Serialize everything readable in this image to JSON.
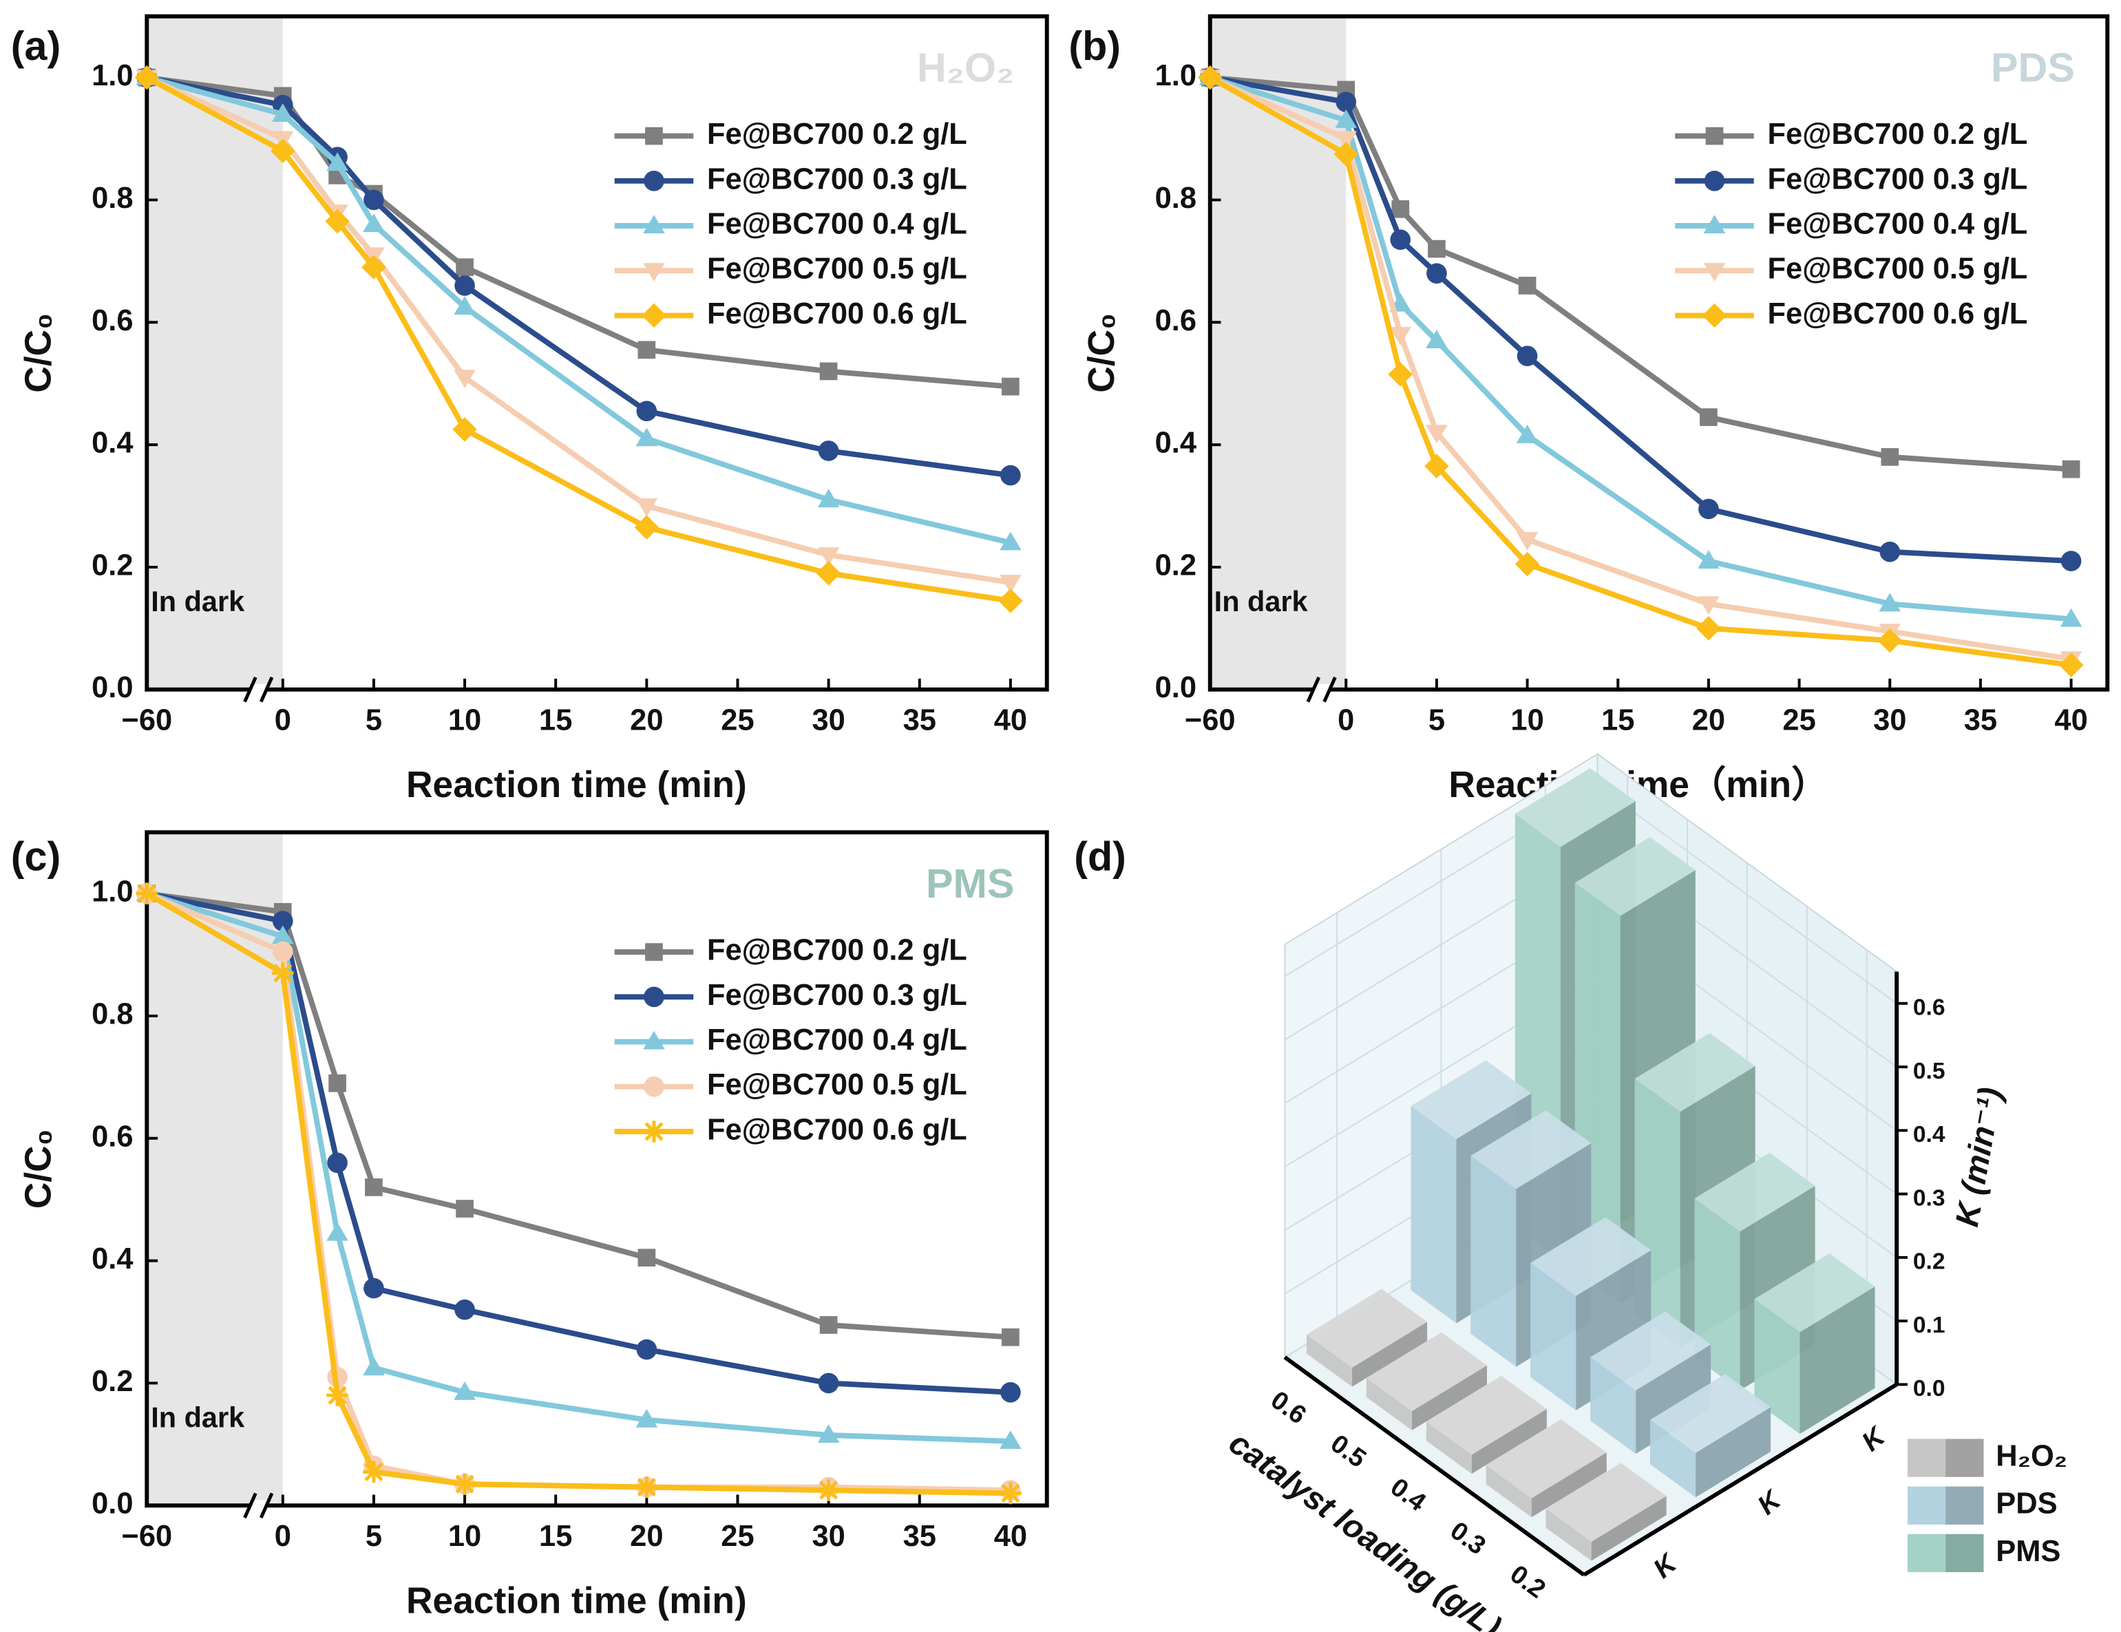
{
  "chart_data": [
    {
      "type": "line",
      "label": "(a)",
      "corner_label": "H₂O₂",
      "corner_color": "#dcdcdc",
      "annotation": "In dark",
      "xlabel": "Reaction time (min)",
      "ylabel": "C/C₀",
      "x": [
        -60,
        0,
        3,
        5,
        10,
        20,
        30,
        40
      ],
      "xlim": [
        -60,
        42
      ],
      "xticks": [
        {
          "value": -60,
          "label": "−60"
        },
        0,
        5,
        10,
        15,
        20,
        25,
        30,
        35,
        40
      ],
      "ylim": [
        0,
        1.1
      ],
      "yticks": [
        {
          "value": 0,
          "label": "0.0"
        },
        0.2,
        0.4,
        0.6,
        0.8,
        {
          "value": 1,
          "label": "1.0"
        }
      ],
      "legend": "upper right",
      "series": [
        {
          "name": "Fe@BC700 0.2 g/L",
          "color": "#7f7f7f",
          "marker": "square",
          "values": [
            1.0,
            0.97,
            0.84,
            0.81,
            0.69,
            0.555,
            0.52,
            0.495
          ]
        },
        {
          "name": "Fe@BC700 0.3 g/L",
          "color": "#2b4c8c",
          "marker": "circle",
          "values": [
            1.0,
            0.955,
            0.87,
            0.8,
            0.66,
            0.455,
            0.39,
            0.35
          ]
        },
        {
          "name": "Fe@BC700 0.4 g/L",
          "color": "#82c8dc",
          "marker": "triangle",
          "values": [
            1.0,
            0.94,
            0.86,
            0.76,
            0.625,
            0.41,
            0.31,
            0.24
          ]
        },
        {
          "name": "Fe@BC700 0.5 g/L",
          "color": "#f6cdb0",
          "marker": "down-triangle",
          "values": [
            1.0,
            0.9,
            0.78,
            0.71,
            0.51,
            0.3,
            0.22,
            0.175
          ]
        },
        {
          "name": "Fe@BC700 0.6 g/L",
          "color": "#fbbd18",
          "marker": "diamond",
          "values": [
            1.0,
            0.88,
            0.765,
            0.69,
            0.425,
            0.265,
            0.19,
            0.145
          ]
        }
      ]
    },
    {
      "type": "line",
      "label": "(b)",
      "corner_label": "PDS",
      "corner_color": "#c6d6dc",
      "annotation": "In dark",
      "xlabel": "Reaction time（min）",
      "ylabel": "C/C₀",
      "x": [
        -60,
        0,
        3,
        5,
        10,
        20,
        30,
        40
      ],
      "xlim": [
        -60,
        42
      ],
      "xticks": [
        {
          "value": -60,
          "label": "−60"
        },
        0,
        5,
        10,
        15,
        20,
        25,
        30,
        35,
        40
      ],
      "ylim": [
        0,
        1.1
      ],
      "yticks": [
        {
          "value": 0,
          "label": "0.0"
        },
        0.2,
        0.4,
        0.6,
        0.8,
        {
          "value": 1,
          "label": "1.0"
        }
      ],
      "legend": "upper right",
      "series": [
        {
          "name": "Fe@BC700 0.2 g/L",
          "color": "#7f7f7f",
          "marker": "square",
          "values": [
            1.0,
            0.98,
            0.785,
            0.72,
            0.66,
            0.445,
            0.38,
            0.36
          ]
        },
        {
          "name": "Fe@BC700 0.3 g/L",
          "color": "#2b4c8c",
          "marker": "circle",
          "values": [
            1.0,
            0.96,
            0.735,
            0.68,
            0.545,
            0.295,
            0.225,
            0.21
          ]
        },
        {
          "name": "Fe@BC700 0.4 g/L",
          "color": "#82c8dc",
          "marker": "triangle",
          "values": [
            1.0,
            0.93,
            0.63,
            0.57,
            0.415,
            0.21,
            0.14,
            0.115
          ]
        },
        {
          "name": "Fe@BC700 0.5 g/L",
          "color": "#f6cdb0",
          "marker": "down-triangle",
          "values": [
            1.0,
            0.9,
            0.58,
            0.42,
            0.245,
            0.14,
            0.095,
            0.05
          ]
        },
        {
          "name": "Fe@BC700 0.6 g/L",
          "color": "#fbbd18",
          "marker": "diamond",
          "values": [
            1.0,
            0.875,
            0.515,
            0.365,
            0.205,
            0.1,
            0.08,
            0.04
          ]
        }
      ]
    },
    {
      "type": "line",
      "label": "(c)",
      "corner_label": "PMS",
      "corner_color": "#9cc4bb",
      "annotation": "In dark",
      "xlabel": "Reaction time (min)",
      "ylabel": "C/C₀",
      "x": [
        -60,
        0,
        3,
        5,
        10,
        20,
        30,
        40
      ],
      "xlim": [
        -60,
        42
      ],
      "xticks": [
        {
          "value": -60,
          "label": "−60"
        },
        0,
        5,
        10,
        15,
        20,
        25,
        30,
        35,
        40
      ],
      "ylim": [
        0,
        1.1
      ],
      "yticks": [
        {
          "value": 0,
          "label": "0.0"
        },
        0.2,
        0.4,
        0.6,
        0.8,
        {
          "value": 1,
          "label": "1.0"
        }
      ],
      "legend": "upper right",
      "series": [
        {
          "name": "Fe@BC700 0.2 g/L",
          "color": "#7f7f7f",
          "marker": "square",
          "values": [
            1.0,
            0.97,
            0.69,
            0.52,
            0.485,
            0.405,
            0.295,
            0.275
          ]
        },
        {
          "name": "Fe@BC700 0.3 g/L",
          "color": "#2b4c8c",
          "marker": "circle",
          "values": [
            1.0,
            0.955,
            0.56,
            0.355,
            0.32,
            0.255,
            0.2,
            0.185
          ]
        },
        {
          "name": "Fe@BC700 0.4 g/L",
          "color": "#82c8dc",
          "marker": "triangle",
          "values": [
            1.0,
            0.93,
            0.445,
            0.225,
            0.185,
            0.14,
            0.115,
            0.105
          ]
        },
        {
          "name": "Fe@BC700 0.5 g/L",
          "color": "#f6cdb0",
          "marker": "circle",
          "values": [
            1.0,
            0.905,
            0.21,
            0.065,
            0.035,
            0.03,
            0.03,
            0.025
          ]
        },
        {
          "name": "Fe@BC700 0.6 g/L",
          "color": "#fbbd18",
          "marker": "star",
          "values": [
            1.0,
            0.87,
            0.18,
            0.055,
            0.035,
            0.03,
            0.025,
            0.02
          ]
        }
      ]
    },
    {
      "type": "bar3d",
      "label": "(d)",
      "xlabel": "catalyst loading (g/L)",
      "zlabel": "K (min⁻¹)",
      "categories": [
        "0.2",
        "0.3",
        "0.4",
        "0.5",
        "0.6"
      ],
      "row_labels": [
        "K",
        "K",
        "K"
      ],
      "zlim": [
        0,
        0.65
      ],
      "zticks": [
        {
          "value": 0,
          "label": "0.0"
        },
        0.1,
        0.2,
        0.3,
        0.4,
        0.5,
        0.6
      ],
      "grid": true,
      "legend": "lower right",
      "series": [
        {
          "name": "H₂O₂",
          "color": "#c6c6c6",
          "values": [
            0.03,
            0.03,
            0.03,
            0.03,
            0.03
          ]
        },
        {
          "name": "PDS",
          "color": "#b3d2e0",
          "values": [
            0.07,
            0.1,
            0.18,
            0.28,
            0.29
          ]
        },
        {
          "name": "PMS",
          "color": "#a4d2c6",
          "values": [
            0.16,
            0.25,
            0.37,
            0.61,
            0.65
          ]
        }
      ]
    }
  ]
}
